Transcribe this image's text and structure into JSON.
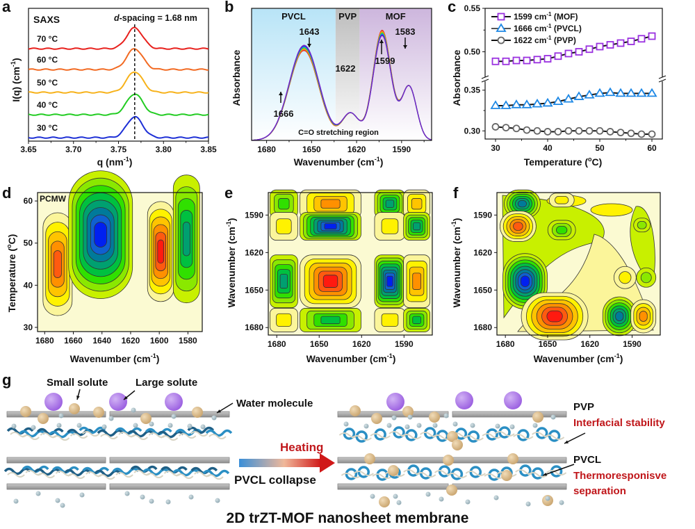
{
  "chart_data": [
    {
      "panel": "a",
      "type": "line",
      "title": "SAXS",
      "annotation": "d-spacing = 1.68 nm",
      "annotation_italic_prefix": "d",
      "annotation_rest": "-spacing = 1.68 nm",
      "xlabel": "q (nm",
      "xlabel_sup": "-1",
      "xlabel_close": ")",
      "ylabel": "I(q) (cm",
      "ylabel_sup": "-1",
      "ylabel_close": ")",
      "xlim": [
        3.65,
        3.85
      ],
      "xticks": [
        "3.65",
        "3.70",
        "3.75",
        "3.80",
        "3.85"
      ],
      "peak_q": 3.768,
      "series": [
        {
          "name": "70 °C",
          "label": "70 °C",
          "color": "#e8201c"
        },
        {
          "name": "60 °C",
          "label": "60 °C",
          "color": "#f26a22"
        },
        {
          "name": "50 °C",
          "label": "50 °C",
          "color": "#f7b21a"
        },
        {
          "name": "40 °C",
          "label": "40 °C",
          "color": "#22cc22"
        },
        {
          "name": "30 °C",
          "label": "30 °C",
          "color": "#1d2fd6"
        }
      ]
    },
    {
      "panel": "b",
      "type": "line",
      "xlabel": "Wavenumber (cm",
      "xlabel_sup": "-1",
      "xlabel_close": ")",
      "ylabel": "Absorbance",
      "xlim": [
        1690,
        1570
      ],
      "xticks": [
        "1680",
        "1650",
        "1620",
        "1590"
      ],
      "regions": [
        {
          "name": "PVCL",
          "from": 1690,
          "to": 1634,
          "color": "#b8e4f7"
        },
        {
          "name": "PVP",
          "from": 1634,
          "to": 1618,
          "color": "#bdbdbd"
        },
        {
          "name": "MOF",
          "from": 1618,
          "to": 1570,
          "color": "#cdb6dd"
        }
      ],
      "region_caption": "C=O stretching region",
      "annotations": [
        {
          "text": "1643",
          "arrow": "down"
        },
        {
          "text": "1622",
          "arrow": "none"
        },
        {
          "text": "1599",
          "arrow": "up"
        },
        {
          "text": "1583",
          "arrow": "down"
        },
        {
          "text": "1666",
          "arrow": "up"
        }
      ],
      "series_colors": [
        "#e8201c",
        "#f26a22",
        "#f7b21a",
        "#22cc22",
        "#2aa7e0",
        "#1d2fd6",
        "#7a22c8"
      ]
    },
    {
      "panel": "c",
      "type": "line",
      "xlabel": "Temperature (",
      "xlabel_sup": "o",
      "xlabel_close": "C)",
      "ylabel": "Absorbance",
      "xlim": [
        28,
        62
      ],
      "xticks": [
        "30",
        "40",
        "50",
        "60"
      ],
      "yticks": [
        "0.30",
        "0.35",
        "0.50",
        "0.55"
      ],
      "y_break": [
        0.36,
        0.47
      ],
      "x": [
        30,
        32,
        34,
        36,
        38,
        40,
        42,
        44,
        46,
        48,
        50,
        52,
        54,
        56,
        58,
        60
      ],
      "series": [
        {
          "name": "1599 cm-1 (MOF)",
          "label_a": "1599 cm",
          "label_sup": "-1",
          "label_b": " (MOF)",
          "marker": "square",
          "color": "#9a30e0",
          "values": [
            0.489,
            0.489,
            0.49,
            0.49,
            0.491,
            0.492,
            0.495,
            0.498,
            0.5,
            0.503,
            0.506,
            0.508,
            0.51,
            0.512,
            0.515,
            0.518
          ]
        },
        {
          "name": "1666 cm-1 (PVCL)",
          "label_a": "1666 cm",
          "label_sup": "-1",
          "label_b": " (PVCL)",
          "marker": "triangle",
          "color": "#1e88e5",
          "values": [
            0.331,
            0.331,
            0.332,
            0.332,
            0.333,
            0.334,
            0.336,
            0.339,
            0.342,
            0.344,
            0.346,
            0.347,
            0.346,
            0.346,
            0.346,
            0.346
          ]
        },
        {
          "name": "1622 cm-1 (PVP)",
          "label_a": "1622 cm",
          "label_sup": "-1",
          "label_b": " (PVP)",
          "marker": "circle",
          "color": "#666666",
          "values": [
            0.305,
            0.304,
            0.303,
            0.301,
            0.3,
            0.299,
            0.299,
            0.3,
            0.3,
            0.3,
            0.3,
            0.299,
            0.298,
            0.297,
            0.296,
            0.296
          ]
        }
      ]
    },
    {
      "panel": "d",
      "type": "heatmap",
      "title": "PCMW",
      "xlabel": "Wavenumber (cm",
      "xlabel_sup": "-1",
      "xlabel_close": ")",
      "ylabel": "Temperature (",
      "ylabel_sup": "o",
      "ylabel_close": "C)",
      "xlim": [
        1685,
        1570
      ],
      "ylim": [
        29,
        62
      ],
      "xticks": [
        "1680",
        "1660",
        "1640",
        "1620",
        "1600",
        "1580"
      ],
      "yticks": [
        "30",
        "40",
        "50",
        "60"
      ],
      "features": [
        {
          "x": 1671,
          "y": 45,
          "sign": "positive",
          "intensity": 0.9
        },
        {
          "x": 1641,
          "y": 52,
          "sign": "negative",
          "intensity": 1.0
        },
        {
          "x": 1599,
          "y": 48,
          "sign": "positive",
          "intensity": 0.95
        },
        {
          "x": 1581,
          "y": 51,
          "sign": "negative",
          "intensity": 0.6
        }
      ]
    },
    {
      "panel": "e",
      "type": "heatmap",
      "subtype": "2D-COS synchronous",
      "xlabel": "Wavenumber (cm",
      "xlabel_sup": "-1",
      "xlabel_close": ")",
      "ylabel": "Wavenumber (cm",
      "ylabel_sup": "-1",
      "ylabel_close": ")",
      "xlim": [
        1686,
        1570
      ],
      "ylim": [
        1572,
        1686
      ],
      "xticks": [
        "1680",
        "1650",
        "1620",
        "1590"
      ],
      "yticks": [
        "1590",
        "1620",
        "1650",
        "1680"
      ],
      "features": [
        {
          "x": 1675,
          "y": 1581,
          "sign": "negative",
          "intensity": 0.4
        },
        {
          "x": 1642,
          "y": 1581,
          "sign": "positive",
          "intensity": 0.7
        },
        {
          "x": 1600,
          "y": 1581,
          "sign": "negative",
          "intensity": 0.6
        },
        {
          "x": 1581,
          "y": 1581,
          "sign": "positive",
          "intensity": 0.55
        },
        {
          "x": 1675,
          "y": 1599,
          "sign": "positive",
          "intensity": 0.2
        },
        {
          "x": 1642,
          "y": 1599,
          "sign": "negative",
          "intensity": 0.95
        },
        {
          "x": 1600,
          "y": 1599,
          "sign": "positive",
          "intensity": 0.25
        },
        {
          "x": 1581,
          "y": 1599,
          "sign": "negative",
          "intensity": 0.6
        },
        {
          "x": 1675,
          "y": 1643,
          "sign": "negative",
          "intensity": 0.6
        },
        {
          "x": 1642,
          "y": 1643,
          "sign": "positive",
          "intensity": 1.0
        },
        {
          "x": 1600,
          "y": 1643,
          "sign": "negative",
          "intensity": 0.95
        },
        {
          "x": 1581,
          "y": 1643,
          "sign": "positive",
          "intensity": 0.7
        },
        {
          "x": 1675,
          "y": 1674,
          "sign": "positive",
          "intensity": 0.1
        },
        {
          "x": 1642,
          "y": 1674,
          "sign": "negative",
          "intensity": 0.5
        },
        {
          "x": 1600,
          "y": 1674,
          "sign": "positive",
          "intensity": 0.25
        },
        {
          "x": 1581,
          "y": 1674,
          "sign": "negative",
          "intensity": 0.45
        }
      ]
    },
    {
      "panel": "f",
      "type": "heatmap",
      "subtype": "2D-COS asynchronous",
      "xlabel": "Wavenumber (cm",
      "xlabel_sup": "-1",
      "xlabel_close": ")",
      "ylabel": "Wavenumber (cm",
      "ylabel_sup": "-1",
      "ylabel_close": ")",
      "xlim": [
        1686,
        1570
      ],
      "ylim": [
        1572,
        1686
      ],
      "xticks": [
        "1680",
        "1650",
        "1620",
        "1590"
      ],
      "yticks": [
        "1590",
        "1620",
        "1650",
        "1680"
      ],
      "features": [
        {
          "x": 1668,
          "y": 1581,
          "sign": "negative",
          "intensity": 0.75
        },
        {
          "x": 1671,
          "y": 1599,
          "sign": "positive",
          "intensity": 0.75
        },
        {
          "x": 1666,
          "y": 1643,
          "sign": "negative",
          "intensity": 1.0
        },
        {
          "x": 1645,
          "y": 1671,
          "sign": "positive",
          "intensity": 1.0
        },
        {
          "x": 1599,
          "y": 1671,
          "sign": "negative",
          "intensity": 0.75
        },
        {
          "x": 1582,
          "y": 1671,
          "sign": "positive",
          "intensity": 0.7
        },
        {
          "x": 1640,
          "y": 1602,
          "sign": "negative",
          "intensity": 0.35
        },
        {
          "x": 1580,
          "y": 1640,
          "sign": "negative",
          "intensity": 0.3
        },
        {
          "x": 1595,
          "y": 1640,
          "sign": "positive",
          "intensity": 0.3
        },
        {
          "x": 1640,
          "y": 1578,
          "sign": "positive",
          "intensity": 0.2
        },
        {
          "x": 1583,
          "y": 1598,
          "sign": "negative",
          "intensity": 0.3
        }
      ]
    }
  ],
  "panels": {
    "a": "a",
    "b": "b",
    "c": "c",
    "d": "d",
    "e": "e",
    "f": "f",
    "g": "g"
  },
  "schematic": {
    "labels": {
      "small_solute": "Small solute",
      "large_solute": "Large solute",
      "water_molecule": "Water molecule",
      "heating": "Heating",
      "pvcl_collapse": "PVCL collapse",
      "pvp": "PVP",
      "interfacial_stability": "Interfacial stability",
      "pvcl": "PVCL",
      "thermo_line1": "Thermoresponisve",
      "thermo_line2": "separation",
      "membrane_title": "2D trZT-MOF nanosheet membrane"
    },
    "colors": {
      "large_solute": "#a56de0",
      "small_solute": "#d7b98a",
      "water": "#9fb6bf",
      "sheet": "#9a9a9a",
      "pvcl_chain": "#2b8fc4",
      "pvp_chain": "#d8d4c4",
      "accent_red": "#c0161a"
    }
  }
}
